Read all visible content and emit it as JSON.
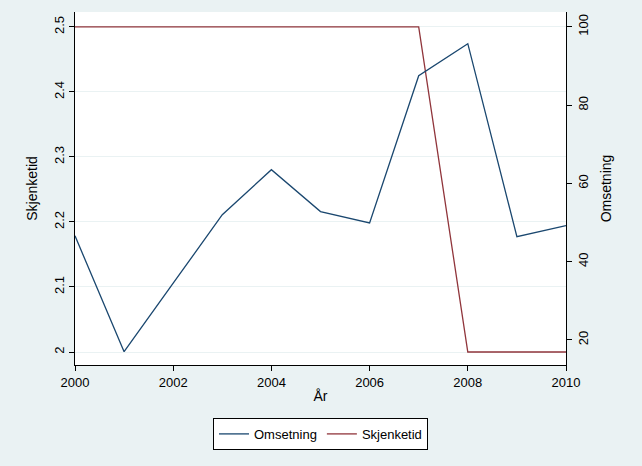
{
  "chart_data": {
    "type": "line",
    "xlabel": "År",
    "ylabel": "Skjenketid",
    "y2label": "Omsetning",
    "x": [
      2000,
      2001,
      2002,
      2003,
      2004,
      2005,
      2006,
      2007,
      2008,
      2009,
      2010
    ],
    "series": [
      {
        "name": "Omsetning",
        "color": "#1a476f",
        "axis": "y2",
        "values": [
          46.6,
          17.0,
          34.5,
          52.0,
          63.5,
          52.8,
          49.9,
          87.5,
          95.7,
          46.4,
          49.2
        ]
      },
      {
        "name": "Skjenketid",
        "color": "#90353b",
        "axis": "y",
        "values": [
          2.5,
          2.5,
          2.5,
          2.5,
          2.5,
          2.5,
          2.5,
          2.5,
          2.0,
          2.0,
          2.0
        ]
      }
    ],
    "xlim": [
      2000,
      2010
    ],
    "xticks": [
      2000,
      2002,
      2004,
      2006,
      2008,
      2010
    ],
    "ylim": [
      1.98,
      2.523
    ],
    "yticks": [
      2,
      2.1,
      2.2,
      2.3,
      2.4,
      2.5
    ],
    "y2lim": [
      13.6,
      103.8
    ],
    "y2ticks": [
      20,
      40,
      60,
      80,
      100
    ],
    "grid": true,
    "legend": "bottom"
  }
}
